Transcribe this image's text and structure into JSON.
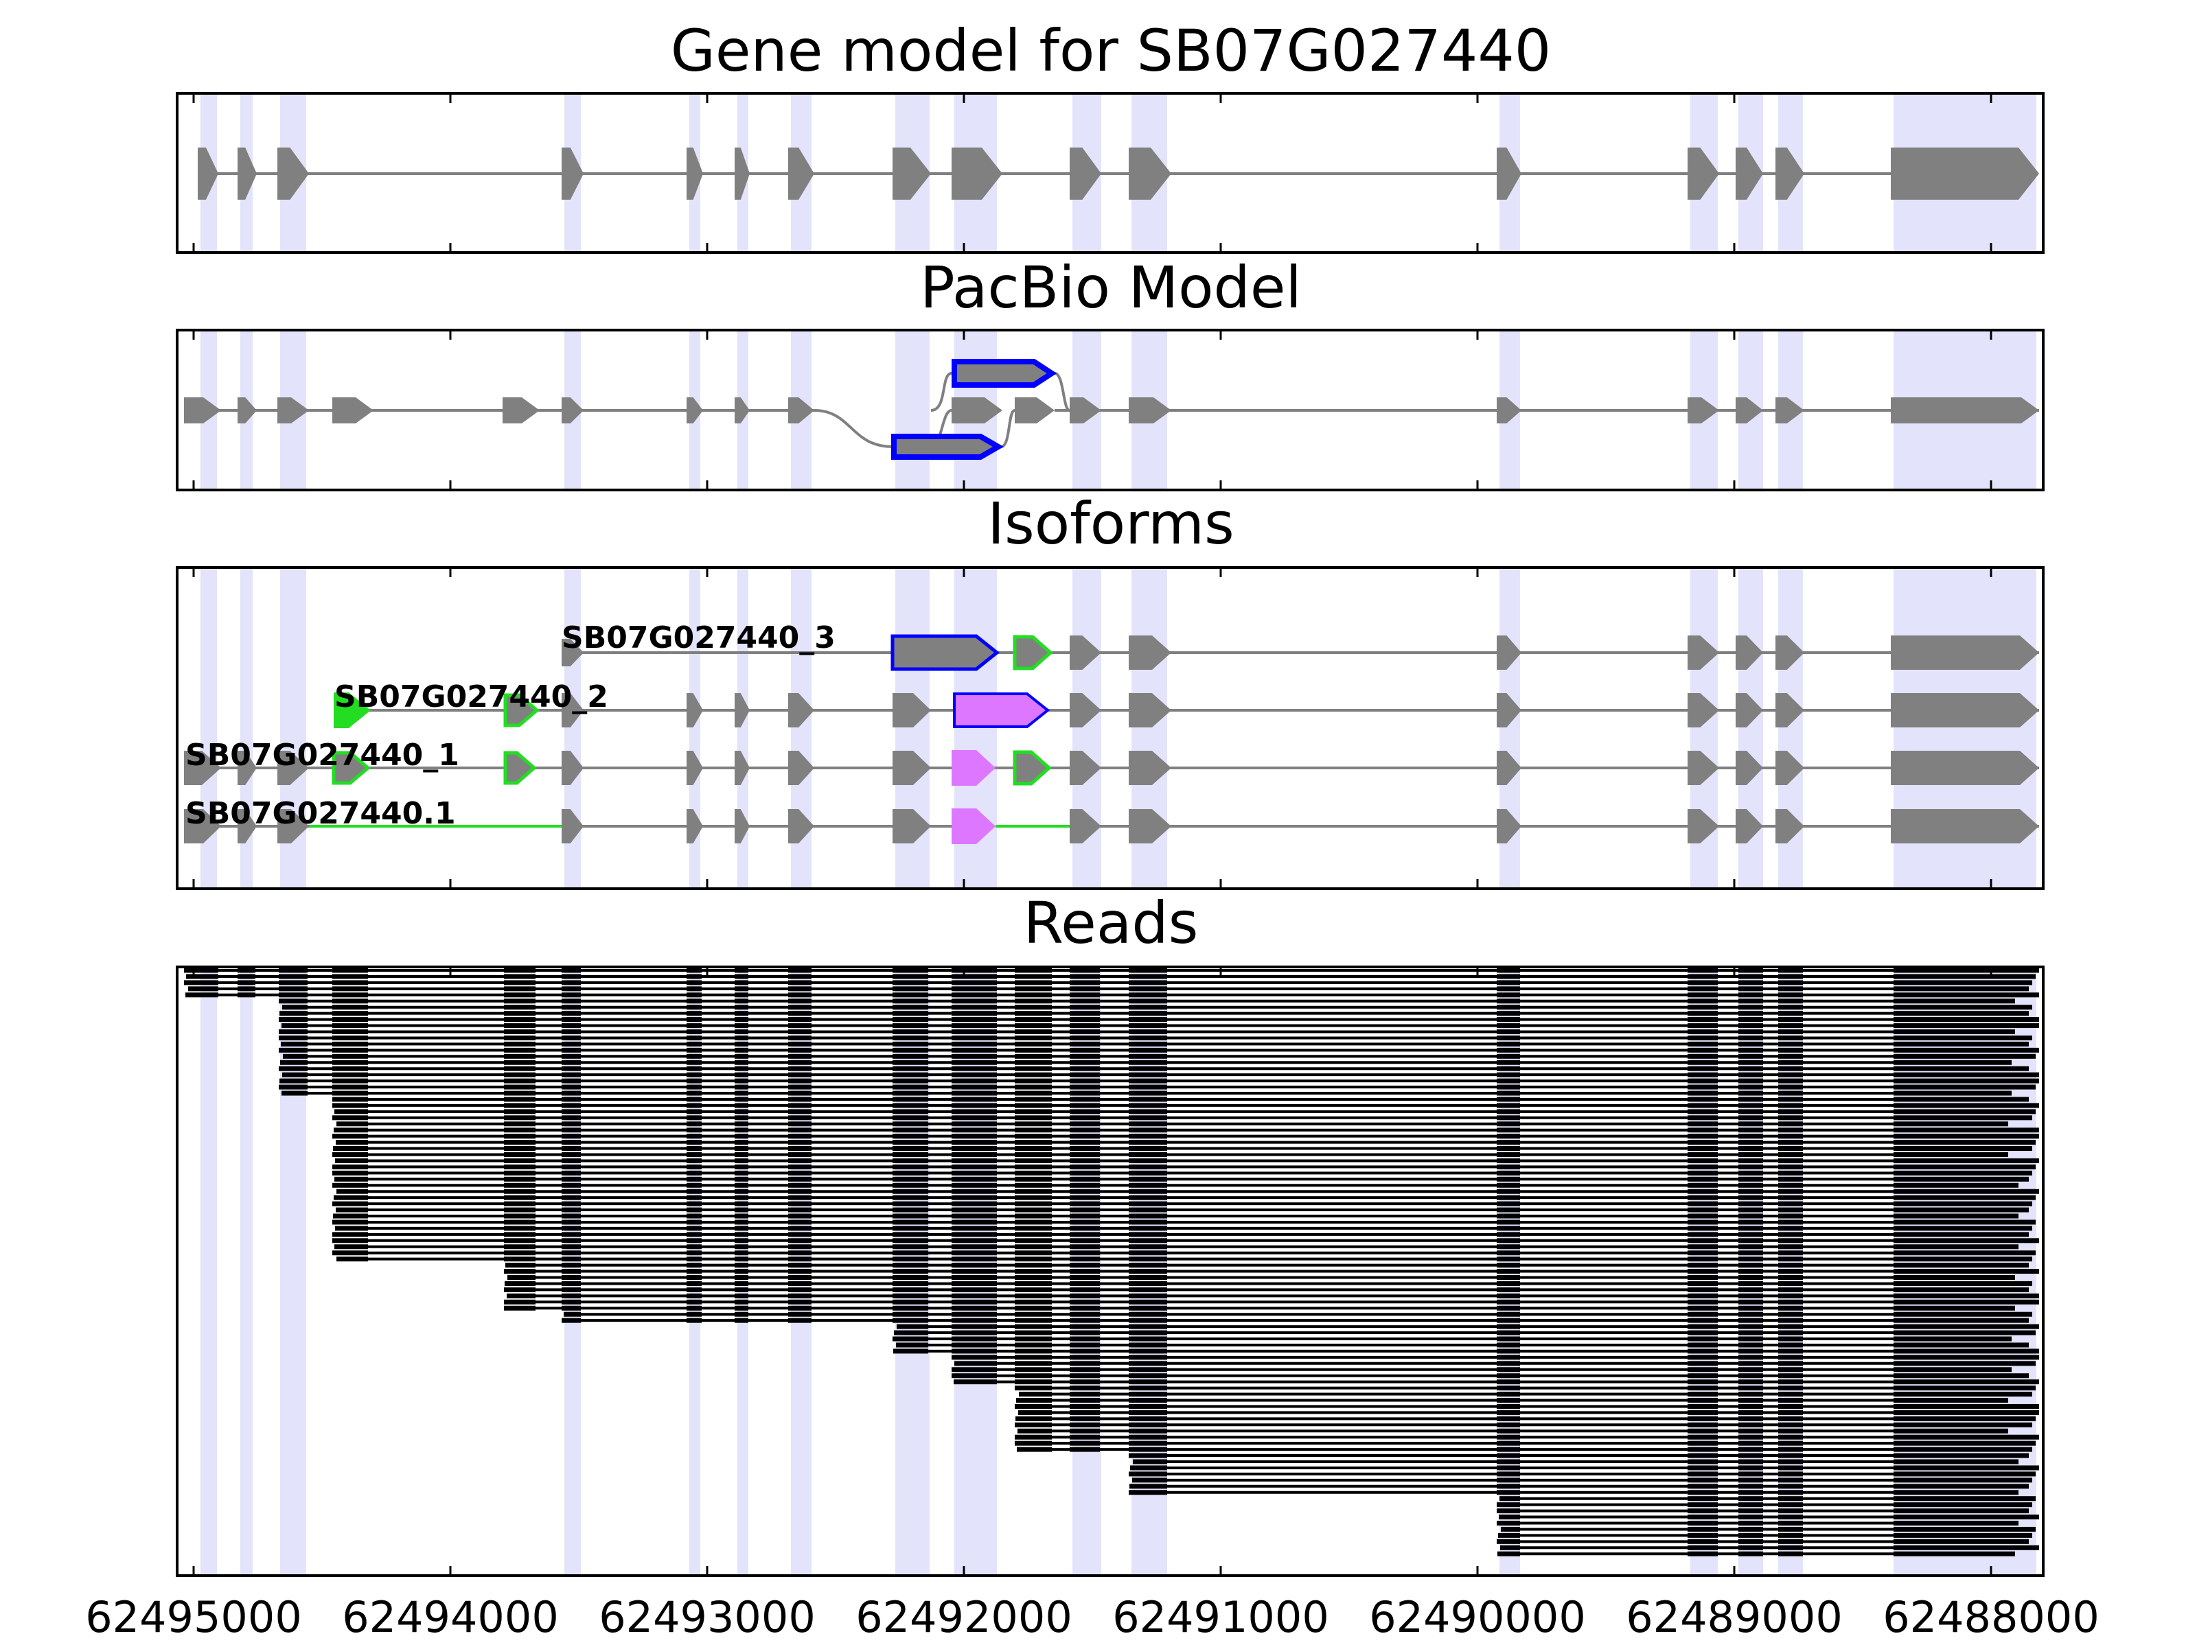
{
  "figure": {
    "panels": [
      {
        "id": "gene-model",
        "title": "Gene model for SB07G027440"
      },
      {
        "id": "pacbio-model",
        "title": "PacBio Model"
      },
      {
        "id": "isoforms",
        "title": "Isoforms"
      },
      {
        "id": "reads",
        "title": "Reads"
      }
    ],
    "x_axis": {
      "reversed": true,
      "range": [
        62495040,
        62487790
      ],
      "ticks": [
        "62495000",
        "62494000",
        "62493000",
        "62492000",
        "62491000",
        "62490000",
        "62489000",
        "62488000"
      ]
    },
    "colors": {
      "exon": "#808080",
      "intron": "#808080",
      "highlight": "#e3e3fb",
      "alt_outline_blue": "#0000ff",
      "alt_outline_green": "#22dd22",
      "retained_fill": "#dd77ff",
      "read": "#000000"
    },
    "isoforms": [
      {
        "label": "SB07G027440_3"
      },
      {
        "label": "SB07G027440_2"
      },
      {
        "label": "SB07G027440_1"
      },
      {
        "label": "SB07G027440.1"
      }
    ],
    "reads_count": 96
  }
}
